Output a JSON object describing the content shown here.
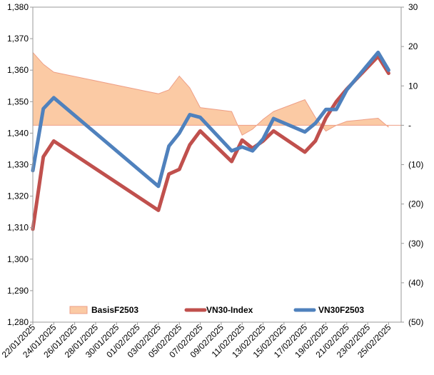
{
  "chart_data": {
    "type": "line",
    "x": [
      "22/01/2025",
      "23/01/2025",
      "24/01/2025",
      "03/02/2025",
      "04/02/2025",
      "05/02/2025",
      "06/02/2025",
      "07/02/2025",
      "10/02/2025",
      "11/02/2025",
      "12/02/2025",
      "13/02/2025",
      "14/02/2025",
      "17/02/2025",
      "18/02/2025",
      "19/02/2025",
      "20/02/2025",
      "21/02/2025",
      "24/02/2025",
      "25/02/2025"
    ],
    "x_tick_labels": [
      "22/01/2025",
      "24/01/2025",
      "26/01/2025",
      "28/01/2025",
      "30/01/2025",
      "01/02/2025",
      "03/02/2025",
      "05/02/2025",
      "07/02/2025",
      "09/02/2025",
      "11/02/2025",
      "13/02/2025",
      "15/02/2025",
      "17/02/2025",
      "19/02/2025",
      "21/02/2025",
      "23/02/2025",
      "25/02/2025"
    ],
    "y_left": {
      "min": 1280,
      "max": 1380,
      "ticks": [
        1280,
        1290,
        1300,
        1310,
        1320,
        1330,
        1340,
        1350,
        1360,
        1370,
        1380
      ],
      "tick_labels": [
        "1,280",
        "1,290",
        "1,300",
        "1,310",
        "1,320",
        "1,330",
        "1,340",
        "1,350",
        "1,360",
        "1,370",
        "1,380"
      ]
    },
    "y_right": {
      "min": -50,
      "max": 30,
      "ticks": [
        -50,
        -40,
        -30,
        -20,
        -10,
        0,
        10,
        20,
        30
      ],
      "tick_labels": [
        "(50)",
        "(40)",
        "(30)",
        "(20)",
        "(10)",
        "-",
        "10",
        "20",
        "30"
      ]
    },
    "series": [
      {
        "name": "BasisF2503",
        "type": "area",
        "axis": "right",
        "color": "#fbcaa4",
        "stroke": "#ee9f87",
        "values": [
          18.5,
          15.5,
          13.5,
          8,
          9,
          12.5,
          9.5,
          4.5,
          3.5,
          -2.5,
          -1,
          1.5,
          3.5,
          6.5,
          2,
          -1.5,
          0,
          1,
          1.8,
          -0.5
        ]
      },
      {
        "name": "VN30-Index",
        "type": "line",
        "axis": "left",
        "color": "#c0504d",
        "values": [
          1309.5,
          1332.5,
          1337.5,
          1315.5,
          1327,
          1328.5,
          1336.3,
          1340.7,
          1331,
          1337.8,
          1335.2,
          1337.5,
          1340.7,
          1334,
          1337.5,
          1344.8,
          1350,
          1354,
          1364.4,
          1359
        ]
      },
      {
        "name": "VN30F2503",
        "type": "line",
        "axis": "right",
        "color": "#4f81bd",
        "values": [
          -11.5,
          4.2,
          7,
          -15.5,
          -5.3,
          -2,
          2.7,
          2,
          -6.5,
          -5.5,
          -6.5,
          -3.5,
          1.7,
          -1.7,
          0.5,
          4,
          4,
          9,
          18.5,
          14
        ]
      }
    ],
    "legend": [
      "BasisF2503",
      "VN30-Index",
      "VN30F2503"
    ],
    "legend_position": "bottom-inside",
    "grid": false
  }
}
